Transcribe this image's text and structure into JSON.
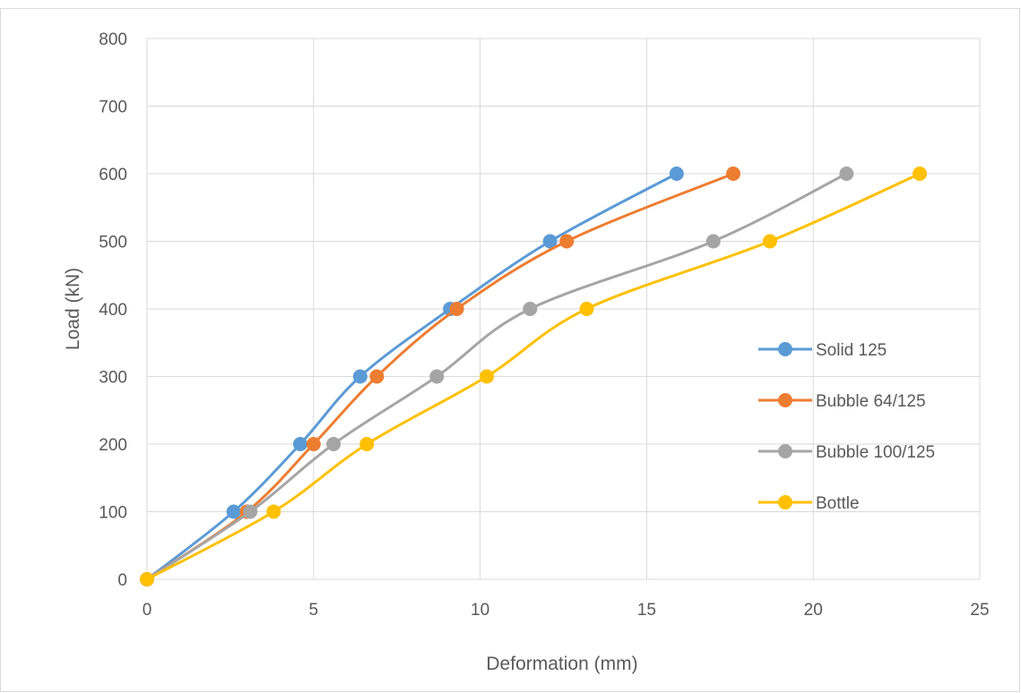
{
  "chart_data": {
    "type": "scatter",
    "title": "",
    "xlabel": "Deformation (mm)",
    "ylabel": "Load (kN)",
    "xlim": [
      0,
      25
    ],
    "ylim": [
      0,
      800
    ],
    "x_ticks": [
      0,
      5,
      10,
      15,
      20,
      25
    ],
    "y_ticks": [
      0,
      100,
      200,
      300,
      400,
      500,
      600,
      700,
      800
    ],
    "grid": true,
    "smooth_lines": true,
    "legend_position": "right",
    "series": [
      {
        "name": "Solid 125",
        "color": "#5b9bd5",
        "x": [
          0,
          2.6,
          4.6,
          6.4,
          9.1,
          12.1,
          15.9
        ],
        "y": [
          0,
          100,
          200,
          300,
          400,
          500,
          600
        ]
      },
      {
        "name": "Bubble 64/125",
        "color": "#ed7d31",
        "x": [
          0,
          3.0,
          5.0,
          6.9,
          9.3,
          12.6,
          17.6
        ],
        "y": [
          0,
          100,
          200,
          300,
          400,
          500,
          600
        ]
      },
      {
        "name": "Bubble 100/125",
        "color": "#a5a5a5",
        "x": [
          0,
          3.1,
          5.6,
          8.7,
          11.5,
          17.0,
          21.0
        ],
        "y": [
          0,
          100,
          200,
          300,
          400,
          500,
          600
        ]
      },
      {
        "name": "Bottle",
        "color": "#ffc000",
        "x": [
          0,
          3.8,
          6.6,
          10.2,
          13.2,
          18.7,
          23.2
        ],
        "y": [
          0,
          100,
          200,
          300,
          400,
          500,
          600
        ]
      }
    ]
  }
}
